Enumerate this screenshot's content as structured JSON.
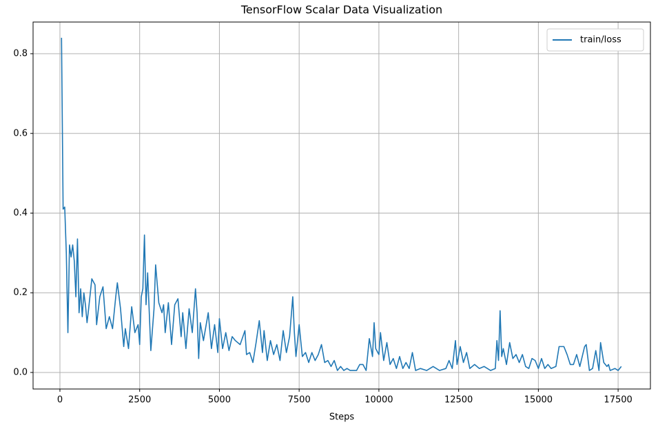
{
  "chart_data": {
    "type": "line",
    "title": "TensorFlow Scalar Data Visualization",
    "x_label": "Steps",
    "x": [
      50,
      100,
      150,
      200,
      250,
      300,
      350,
      400,
      450,
      500,
      550,
      600,
      650,
      700,
      750,
      800,
      850,
      900,
      1000,
      1100,
      1150,
      1250,
      1350,
      1450,
      1550,
      1650,
      1750,
      1800,
      1900,
      2000,
      2050,
      2150,
      2250,
      2350,
      2450,
      2500,
      2550,
      2600,
      2650,
      2700,
      2750,
      2850,
      2950,
      3000,
      3100,
      3200,
      3250,
      3300,
      3400,
      3500,
      3600,
      3700,
      3800,
      3850,
      3950,
      4050,
      4150,
      4250,
      4300,
      4350,
      4400,
      4500,
      4650,
      4750,
      4850,
      4950,
      5000,
      5100,
      5200,
      5300,
      5400,
      5500,
      5650,
      5800,
      5850,
      5950,
      6050,
      6150,
      6250,
      6350,
      6400,
      6500,
      6600,
      6700,
      6800,
      6900,
      7000,
      7100,
      7200,
      7300,
      7350,
      7400,
      7500,
      7600,
      7700,
      7800,
      7900,
      8000,
      8100,
      8200,
      8300,
      8400,
      8500,
      8600,
      8700,
      8800,
      8900,
      9000,
      9100,
      9300,
      9400,
      9500,
      9600,
      9700,
      9800,
      9850,
      9900,
      10000,
      10050,
      10150,
      10250,
      10350,
      10450,
      10550,
      10650,
      10750,
      10850,
      10950,
      11050,
      11150,
      11300,
      11500,
      11700,
      11900,
      12100,
      12200,
      12300,
      12400,
      12450,
      12550,
      12650,
      12750,
      12850,
      13000,
      13150,
      13300,
      13500,
      13650,
      13700,
      13750,
      13800,
      13850,
      13900,
      14000,
      14100,
      14200,
      14300,
      14400,
      14500,
      14600,
      14700,
      14800,
      14900,
      15000,
      15100,
      15200,
      15300,
      15400,
      15550,
      15650,
      15800,
      15900,
      16000,
      16100,
      16200,
      16300,
      16450,
      16500,
      16600,
      16700,
      16800,
      16900,
      16950,
      17050,
      17150,
      17200,
      17250,
      17400,
      17500,
      17600
    ],
    "series": [
      {
        "name": "train/loss",
        "color": "#1f77b4",
        "values": [
          0.84,
          0.41,
          0.415,
          0.3,
          0.1,
          0.32,
          0.29,
          0.32,
          0.28,
          0.19,
          0.335,
          0.15,
          0.21,
          0.14,
          0.2,
          0.17,
          0.125,
          0.16,
          0.235,
          0.22,
          0.12,
          0.19,
          0.215,
          0.11,
          0.14,
          0.11,
          0.19,
          0.225,
          0.16,
          0.065,
          0.11,
          0.06,
          0.165,
          0.1,
          0.12,
          0.07,
          0.19,
          0.21,
          0.345,
          0.17,
          0.25,
          0.055,
          0.16,
          0.27,
          0.175,
          0.15,
          0.17,
          0.1,
          0.175,
          0.07,
          0.17,
          0.185,
          0.09,
          0.15,
          0.06,
          0.16,
          0.1,
          0.21,
          0.15,
          0.035,
          0.125,
          0.08,
          0.15,
          0.06,
          0.12,
          0.05,
          0.135,
          0.06,
          0.1,
          0.055,
          0.09,
          0.08,
          0.07,
          0.105,
          0.045,
          0.05,
          0.025,
          0.075,
          0.13,
          0.05,
          0.105,
          0.03,
          0.08,
          0.045,
          0.07,
          0.03,
          0.105,
          0.05,
          0.09,
          0.19,
          0.1,
          0.04,
          0.12,
          0.04,
          0.05,
          0.025,
          0.05,
          0.03,
          0.045,
          0.07,
          0.025,
          0.03,
          0.015,
          0.03,
          0.005,
          0.015,
          0.005,
          0.01,
          0.005,
          0.005,
          0.02,
          0.02,
          0.005,
          0.085,
          0.04,
          0.125,
          0.06,
          0.045,
          0.1,
          0.03,
          0.075,
          0.02,
          0.035,
          0.01,
          0.04,
          0.01,
          0.025,
          0.01,
          0.05,
          0.005,
          0.01,
          0.005,
          0.015,
          0.005,
          0.01,
          0.03,
          0.01,
          0.08,
          0.02,
          0.065,
          0.025,
          0.05,
          0.01,
          0.02,
          0.01,
          0.015,
          0.005,
          0.01,
          0.08,
          0.03,
          0.155,
          0.04,
          0.06,
          0.02,
          0.075,
          0.035,
          0.045,
          0.025,
          0.045,
          0.015,
          0.01,
          0.035,
          0.03,
          0.01,
          0.035,
          0.01,
          0.02,
          0.01,
          0.015,
          0.065,
          0.065,
          0.045,
          0.02,
          0.02,
          0.045,
          0.015,
          0.065,
          0.07,
          0.005,
          0.01,
          0.055,
          0.005,
          0.075,
          0.025,
          0.015,
          0.02,
          0.005,
          0.01,
          0.005,
          0.015
        ]
      }
    ],
    "xlim": [
      -842,
      18513
    ],
    "ylim": [
      -0.0415,
      0.8795
    ],
    "xticks": [
      0,
      2500,
      5000,
      7500,
      10000,
      12500,
      15000,
      17500
    ],
    "yticks": [
      {
        "value": 0,
        "label": "0.0"
      },
      0.2,
      0.4,
      0.6,
      0.8
    ],
    "grid": true,
    "legend": "upper right"
  }
}
